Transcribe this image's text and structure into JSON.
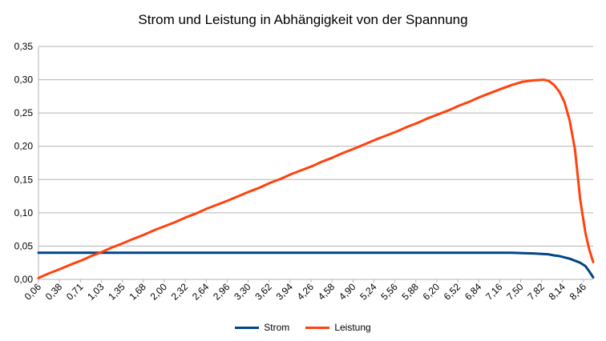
{
  "chart_data": {
    "type": "line",
    "title": "Strom und Leistung in Abhängigkeit von der Spannung",
    "xlabel": "",
    "ylabel": "",
    "ylim": [
      0,
      0.35
    ],
    "y_ticks": [
      "0,00",
      "0,05",
      "0,10",
      "0,15",
      "0,20",
      "0,25",
      "0,30",
      "0,35"
    ],
    "x_tick_labels": [
      "0,06",
      "0,38",
      "0,71",
      "1,03",
      "1,35",
      "1,68",
      "2,00",
      "2,32",
      "2,64",
      "2,96",
      "3,30",
      "3,62",
      "3,94",
      "4,26",
      "4,58",
      "4,90",
      "5,24",
      "5,56",
      "5,88",
      "6,20",
      "6,52",
      "6,84",
      "7,16",
      "7,50",
      "7,82",
      "8,14",
      "8,46"
    ],
    "grid": true,
    "legend_position": "bottom",
    "x": [
      0.06,
      0.22,
      0.38,
      0.55,
      0.71,
      0.87,
      1.03,
      1.19,
      1.35,
      1.52,
      1.68,
      1.84,
      2.0,
      2.16,
      2.32,
      2.48,
      2.64,
      2.8,
      2.96,
      3.13,
      3.3,
      3.46,
      3.62,
      3.78,
      3.94,
      4.1,
      4.26,
      4.42,
      4.58,
      4.74,
      4.9,
      5.07,
      5.24,
      5.4,
      5.56,
      5.72,
      5.88,
      6.04,
      6.2,
      6.36,
      6.52,
      6.68,
      6.84,
      7.0,
      7.16,
      7.33,
      7.5,
      7.66,
      7.82,
      7.9,
      7.98,
      8.06,
      8.14,
      8.22,
      8.3,
      8.38,
      8.46,
      8.52,
      8.58
    ],
    "series": [
      {
        "name": "Strom",
        "color": "#004586",
        "values": [
          0.04,
          0.04,
          0.04,
          0.04,
          0.04,
          0.04,
          0.04,
          0.04,
          0.04,
          0.04,
          0.04,
          0.04,
          0.04,
          0.04,
          0.04,
          0.04,
          0.04,
          0.04,
          0.04,
          0.04,
          0.04,
          0.04,
          0.04,
          0.04,
          0.04,
          0.04,
          0.04,
          0.04,
          0.04,
          0.04,
          0.04,
          0.04,
          0.04,
          0.04,
          0.04,
          0.04,
          0.04,
          0.04,
          0.04,
          0.04,
          0.04,
          0.04,
          0.04,
          0.04,
          0.04,
          0.04,
          0.0395,
          0.039,
          0.038,
          0.0375,
          0.036,
          0.035,
          0.033,
          0.031,
          0.028,
          0.025,
          0.02,
          0.012,
          0.003
        ]
      },
      {
        "name": "Leistung",
        "color": "#ff420e",
        "values": [
          0.002,
          0.009,
          0.015,
          0.022,
          0.028,
          0.035,
          0.041,
          0.048,
          0.054,
          0.061,
          0.067,
          0.074,
          0.08,
          0.086,
          0.093,
          0.099,
          0.106,
          0.112,
          0.118,
          0.125,
          0.132,
          0.138,
          0.145,
          0.151,
          0.158,
          0.164,
          0.17,
          0.177,
          0.183,
          0.19,
          0.196,
          0.203,
          0.21,
          0.216,
          0.222,
          0.229,
          0.235,
          0.242,
          0.248,
          0.254,
          0.261,
          0.267,
          0.274,
          0.28,
          0.286,
          0.292,
          0.297,
          0.299,
          0.3,
          0.298,
          0.292,
          0.282,
          0.266,
          0.238,
          0.195,
          0.12,
          0.07,
          0.045,
          0.026
        ]
      }
    ]
  }
}
